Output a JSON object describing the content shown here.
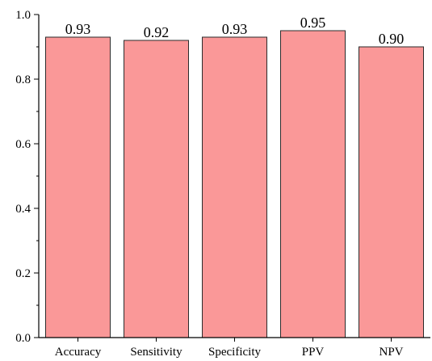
{
  "chart_data": {
    "type": "bar",
    "title": "",
    "xlabel": "",
    "ylabel": "",
    "categories": [
      "Accuracy",
      "Sensitivity",
      "Specificity",
      "PPV",
      "NPV"
    ],
    "values": [
      0.93,
      0.92,
      0.93,
      0.95,
      0.9
    ],
    "data_labels": [
      "0.93",
      "0.92",
      "0.93",
      "0.95",
      "0.90"
    ],
    "ylim": [
      0.0,
      1.0
    ],
    "yticks": [
      0.0,
      0.2,
      0.4,
      0.6,
      0.8,
      1.0
    ],
    "ytick_labels": [
      "0.0",
      "0.2",
      "0.4",
      "0.6",
      "0.8",
      "1.0"
    ],
    "grid": false,
    "legend": "none",
    "colors": {
      "bar_fill": "#fa9898",
      "bar_stroke": "#2b2b2b",
      "axis": "#000000"
    }
  }
}
